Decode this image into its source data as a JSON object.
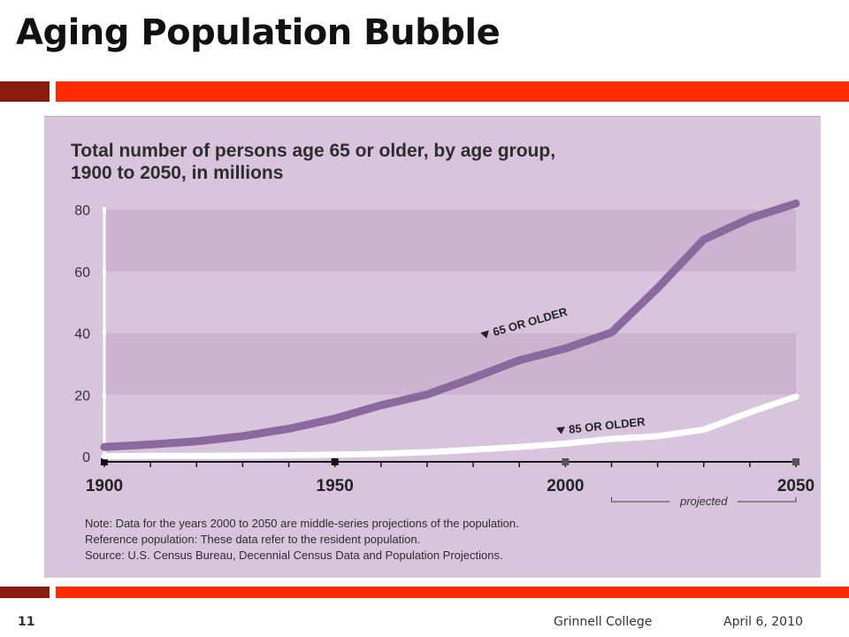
{
  "slide": {
    "title": "Aging Population Bubble",
    "page_number": "11",
    "organization": "Grinnell College",
    "date": "April 6, 2010"
  },
  "colors": {
    "accent_red": "#ff2a00",
    "accent_dark_red": "#8b1a10",
    "panel_bg": "#d8c4dc",
    "band_bg": "#ccb4d1",
    "series_65": "#8a6a9e",
    "series_85": "#ffffff"
  },
  "chart_data": {
    "type": "line",
    "title": "Total number of persons age 65 or older, by age group, 1900 to 2050, in millions",
    "title_lines": [
      "Total number of persons age 65 or older, by age group,",
      "1900 to 2050, in millions"
    ],
    "x_tick_labels": [
      "1900",
      "1950",
      "2000",
      "2050"
    ],
    "xlim": [
      1900,
      2050
    ],
    "y_tick_labels": [
      "0",
      "20",
      "40",
      "60",
      "80"
    ],
    "ylim": [
      0,
      80
    ],
    "projected_label": "projected",
    "projected_range": [
      2010,
      2050
    ],
    "series": [
      {
        "name": "65 OR OLDER",
        "x": [
          1900,
          1910,
          1920,
          1930,
          1940,
          1950,
          1960,
          1970,
          1980,
          1990,
          2000,
          2010,
          2020,
          2030,
          2040,
          2050
        ],
        "values": [
          3.1,
          3.9,
          4.9,
          6.6,
          9.0,
          12.3,
          16.6,
          20.1,
          25.5,
          31.2,
          35.0,
          40.2,
          54.6,
          70.3,
          77.2,
          82.0
        ]
      },
      {
        "name": "85 OR OLDER",
        "x": [
          1900,
          1910,
          1920,
          1930,
          1940,
          1950,
          1960,
          1970,
          1980,
          1990,
          2000,
          2010,
          2020,
          2030,
          2040,
          2050
        ],
        "values": [
          0.1,
          0.2,
          0.2,
          0.3,
          0.4,
          0.6,
          0.9,
          1.4,
          2.2,
          3.1,
          4.2,
          5.7,
          6.6,
          8.7,
          14.3,
          19.4
        ]
      }
    ],
    "notes": [
      "Note: Data for the years 2000 to 2050 are middle-series projections of the population.",
      "Reference population: These data refer to the resident population.",
      "Source: U.S. Census Bureau, Decennial Census Data and Population Projections."
    ]
  }
}
